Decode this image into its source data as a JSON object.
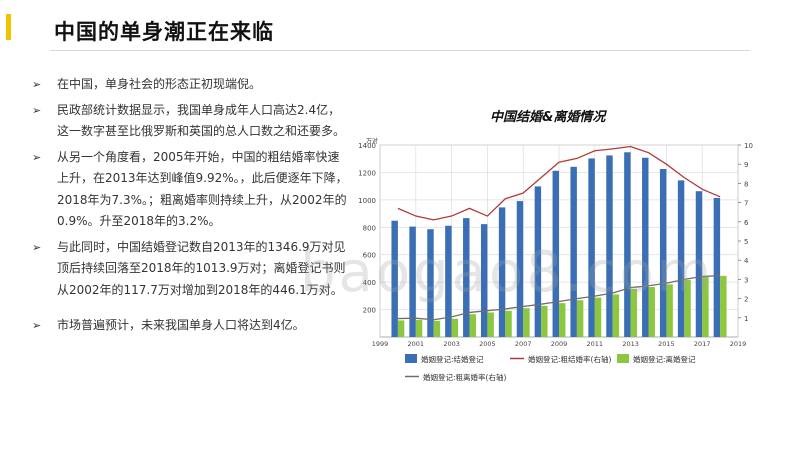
{
  "page": {
    "title": "中国的单身潮正在来临",
    "bullets": [
      "在中国，单身社会的形态正初现端倪。",
      "民政部统计数据显示，我国单身成年人口高达2.4亿，这一数字甚至比俄罗斯和英国的总人口数之和还要多。",
      "从另一个角度看，2005年开始，中国的粗结婚率快速上升，在2013年达到峰值9.92%。，此后便逐年下降，2018年为7.3%。；粗离婚率则持续上升，从2002年的0.9%。升至2018年的3.2%。",
      "与此同时，中国结婚登记数自2013年的1346.9万对见顶后持续回落至2018年的1013.9万对；离婚登记书则从2002年的117.7万对增加到2018年的446.1万对。",
      "市场普遍预计，未来我国单身人口将达到4亿。"
    ],
    "bullet_marker": "➢",
    "watermark": "baogao8.com"
  },
  "chart_data": {
    "type": "bar",
    "title": "中国结婚&离婚情况",
    "ylabel_left": "万对",
    "x": [
      2000,
      2001,
      2002,
      2003,
      2004,
      2005,
      2006,
      2007,
      2008,
      2009,
      2010,
      2011,
      2012,
      2013,
      2014,
      2015,
      2016,
      2017,
      2018
    ],
    "series": [
      {
        "name": "婚姻登记:结婚登记",
        "kind": "bar",
        "axis": "left",
        "color": "#3a6fb5",
        "values": [
          848,
          805,
          786,
          811,
          867,
          823,
          945,
          991,
          1098,
          1212,
          1241,
          1302,
          1324,
          1347,
          1307,
          1225,
          1142,
          1063,
          1014
        ]
      },
      {
        "name": "婚姻登记:离婚登记",
        "kind": "bar",
        "axis": "left",
        "color": "#8dc63f",
        "values": [
          121,
          125,
          118,
          133,
          166,
          179,
          191,
          210,
          227,
          247,
          268,
          287,
          310,
          350,
          364,
          384,
          416,
          437,
          446
        ]
      },
      {
        "name": "婚姻登记:粗结婚率(右轴)",
        "kind": "line",
        "axis": "right",
        "color": "#b03a3a",
        "values": [
          6.7,
          6.3,
          6.1,
          6.3,
          6.7,
          6.3,
          7.2,
          7.5,
          8.3,
          9.1,
          9.3,
          9.7,
          9.8,
          9.92,
          9.6,
          9.0,
          8.3,
          7.7,
          7.3
        ]
      },
      {
        "name": "婚姻登记:粗离婚率(右轴)",
        "kind": "line",
        "axis": "right",
        "color": "#6e6e6e",
        "values": [
          0.96,
          0.98,
          0.9,
          1.05,
          1.28,
          1.37,
          1.46,
          1.59,
          1.71,
          1.85,
          2.0,
          2.13,
          2.29,
          2.57,
          2.67,
          2.8,
          3.0,
          3.15,
          3.2
        ]
      }
    ],
    "y_left": {
      "range": [
        0,
        1400
      ],
      "ticks": [
        200,
        400,
        600,
        800,
        1000,
        1200,
        1400
      ]
    },
    "y_right": {
      "range": [
        0,
        10
      ],
      "ticks": [
        1,
        2,
        3,
        4,
        5,
        6,
        7,
        8,
        9,
        10
      ]
    },
    "x_ticks": [
      1999,
      2001,
      2003,
      2005,
      2007,
      2009,
      2011,
      2013,
      2015,
      2017,
      2019
    ],
    "x_range": [
      1999,
      2019
    ],
    "grid": true,
    "legend_position": "bottom"
  }
}
